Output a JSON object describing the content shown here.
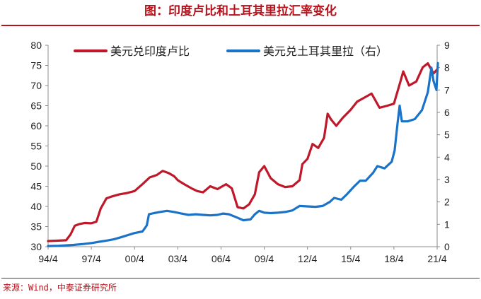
{
  "title": "图：印度卢比和土耳其里拉汇率变化",
  "source": "来源：Wind，中泰证券研究所",
  "colors": {
    "title": "#b5121b",
    "inr": "#c0182b",
    "try": "#1b73c8",
    "axis": "#8c8c8c"
  },
  "chart_data": {
    "type": "line",
    "x_tick_labels": [
      "94/4",
      "97/4",
      "00/4",
      "03/4",
      "06/4",
      "09/4",
      "12/4",
      "15/4",
      "18/4",
      "21/4"
    ],
    "y_left": {
      "range": [
        30,
        80
      ],
      "ticks": [
        "30",
        "35",
        "40",
        "45",
        "50",
        "55",
        "60",
        "65",
        "70",
        "75",
        "80"
      ]
    },
    "y_right": {
      "range": [
        0,
        9
      ],
      "ticks": [
        "0",
        "1",
        "2",
        "3",
        "4",
        "5",
        "6",
        "7",
        "8",
        "9"
      ]
    },
    "legend_position": "top",
    "series": [
      {
        "name": "美元兑印度卢比",
        "axis": "left",
        "color": "#c0182b",
        "x": [
          1994.25,
          1995.0,
          1995.5,
          1995.8,
          1996.1,
          1996.4,
          1996.8,
          1997.25,
          1997.6,
          1997.9,
          1998.3,
          1998.7,
          1999.2,
          1999.7,
          2000.25,
          2000.8,
          2001.3,
          2001.8,
          2002.2,
          2002.6,
          2003.0,
          2003.25,
          2003.7,
          2004.2,
          2004.6,
          2005.0,
          2005.5,
          2006.0,
          2006.25,
          2006.6,
          2007.0,
          2007.4,
          2007.8,
          2008.2,
          2008.6,
          2008.9,
          2009.25,
          2009.7,
          2010.2,
          2010.7,
          2011.2,
          2011.7,
          2011.9,
          2012.25,
          2012.6,
          2013.0,
          2013.4,
          2013.65,
          2013.9,
          2014.25,
          2014.7,
          2015.25,
          2015.7,
          2016.2,
          2016.7,
          2017.25,
          2017.8,
          2018.25,
          2018.7,
          2018.9,
          2019.3,
          2019.8,
          2020.25,
          2020.6,
          2021.0,
          2021.25
        ],
        "y": [
          31.4,
          31.5,
          31.6,
          33.0,
          35.2,
          35.6,
          35.9,
          35.8,
          36.2,
          39.5,
          42.0,
          42.5,
          43.0,
          43.3,
          43.8,
          45.5,
          47.2,
          47.8,
          48.8,
          48.3,
          47.5,
          46.5,
          45.5,
          44.5,
          43.8,
          43.5,
          45.0,
          44.3,
          44.8,
          45.5,
          44.5,
          39.8,
          39.5,
          40.5,
          43.0,
          48.5,
          50.0,
          47.0,
          45.5,
          44.8,
          45.0,
          46.5,
          50.5,
          51.8,
          55.5,
          54.5,
          57.0,
          63.0,
          61.5,
          60.0,
          62.0,
          64.0,
          66.0,
          67.0,
          68.0,
          64.5,
          65.0,
          65.5,
          71.0,
          73.5,
          70.0,
          71.0,
          74.5,
          75.5,
          73.0,
          74.0
        ]
      },
      {
        "name": "美元兑土耳其里拉（右）",
        "axis": "right",
        "color": "#1b73c8",
        "x": [
          1994.25,
          1995.0,
          1996.0,
          1996.7,
          1997.25,
          1997.8,
          1998.3,
          1998.8,
          1999.3,
          1999.8,
          2000.25,
          2000.8,
          2001.1,
          2001.25,
          2001.6,
          2002.0,
          2002.5,
          2003.0,
          2003.5,
          2004.0,
          2004.5,
          2005.0,
          2005.5,
          2006.0,
          2006.4,
          2006.8,
          2007.3,
          2007.8,
          2008.3,
          2008.6,
          2008.9,
          2009.25,
          2009.7,
          2010.2,
          2010.7,
          2011.2,
          2011.7,
          2012.25,
          2012.8,
          2013.3,
          2013.8,
          2014.1,
          2014.6,
          2015.0,
          2015.5,
          2015.9,
          2016.3,
          2016.8,
          2017.1,
          2017.6,
          2018.1,
          2018.3,
          2018.5,
          2018.65,
          2018.8,
          2019.2,
          2019.7,
          2020.2,
          2020.6,
          2020.85,
          2021.0,
          2021.2,
          2021.3
        ],
        "y": [
          0.03,
          0.04,
          0.08,
          0.12,
          0.16,
          0.22,
          0.27,
          0.33,
          0.42,
          0.52,
          0.61,
          0.68,
          0.95,
          1.45,
          1.5,
          1.55,
          1.6,
          1.55,
          1.48,
          1.42,
          1.45,
          1.42,
          1.4,
          1.42,
          1.48,
          1.45,
          1.32,
          1.18,
          1.22,
          1.45,
          1.6,
          1.52,
          1.5,
          1.52,
          1.55,
          1.62,
          1.82,
          1.8,
          1.78,
          1.82,
          2.0,
          2.18,
          2.1,
          2.35,
          2.7,
          2.95,
          2.95,
          3.3,
          3.6,
          3.5,
          3.8,
          4.3,
          5.5,
          6.3,
          5.6,
          5.6,
          5.7,
          6.1,
          6.9,
          8.0,
          7.4,
          7.0,
          8.2
        ]
      }
    ]
  }
}
